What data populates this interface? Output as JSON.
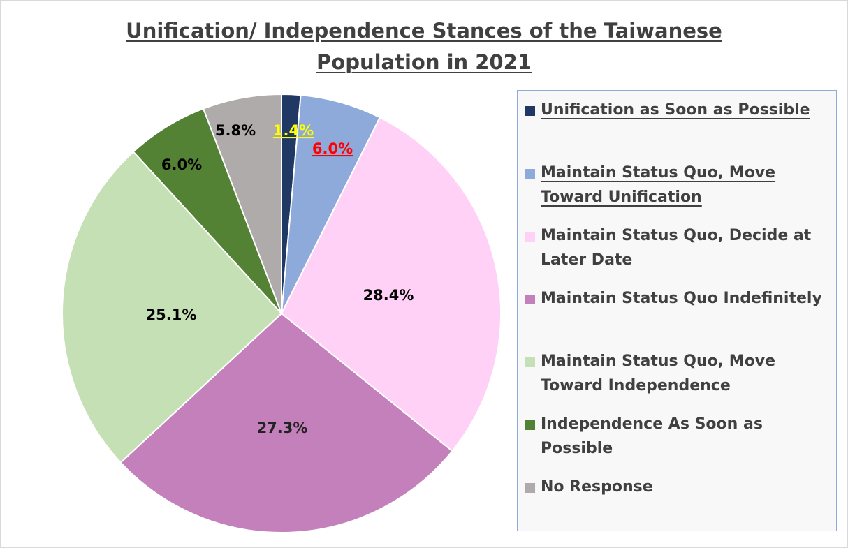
{
  "chart_data": {
    "type": "pie",
    "title": "Unification/ Independence Stances of the Taiwanese Population in 2021",
    "title_lines": [
      "Unification/ Independence Stances of the Taiwanese",
      "Population in 2021"
    ],
    "legend_position": "right",
    "slices": [
      {
        "label": "Unification as Soon as Possible",
        "value": 1.4,
        "value_label": "1.4%",
        "color": "#1f3864",
        "label_color": "#ffff00",
        "label_underline": true,
        "label_bold": true,
        "legend_underline": true
      },
      {
        "label": "Maintain Status Quo, Move Toward Unification",
        "value": 6.0,
        "value_label": "6.0%",
        "color": "#8eaadb",
        "label_color": "#ff0000",
        "label_underline": true,
        "label_bold": true,
        "legend_underline": true
      },
      {
        "label": "Maintain Status Quo, Decide at Later Date",
        "value": 28.4,
        "value_label": "28.4%",
        "color": "#ffd1f6",
        "label_color": "#000000",
        "label_underline": false,
        "label_bold": true,
        "legend_underline": false
      },
      {
        "label": "Maintain Status Quo Indefinitely",
        "value": 27.3,
        "value_label": "27.3%",
        "color": "#c480bb",
        "label_color": "#222222",
        "label_underline": false,
        "label_bold": false,
        "legend_underline": false
      },
      {
        "label": "Maintain Status Quo, Move Toward Independence",
        "value": 25.1,
        "value_label": "25.1%",
        "color": "#c5e0b4",
        "label_color": "#000000",
        "label_underline": false,
        "label_bold": true,
        "legend_underline": false
      },
      {
        "label": "Independence As Soon as Possible",
        "value": 6.0,
        "value_label": "6.0%",
        "color": "#548235",
        "label_color": "#000000",
        "label_underline": false,
        "label_bold": true,
        "legend_underline": false
      },
      {
        "label": "No Response",
        "value": 5.8,
        "value_label": "5.8%",
        "color": "#afabab",
        "label_color": "#000000",
        "label_underline": false,
        "label_bold": true,
        "legend_underline": false
      }
    ],
    "legend_lines": [
      [
        "Unification as Soon as Possible"
      ],
      [
        "Maintain Status Quo, Move",
        "Toward Unification"
      ],
      [
        "Maintain Status Quo, Decide at",
        "Later Date"
      ],
      [
        "Maintain Status Quo Indefinitely"
      ],
      [
        "Maintain Status Quo, Move",
        "Toward Independence"
      ],
      [
        "Independence As Soon as Possible"
      ],
      [
        "No Response"
      ]
    ]
  }
}
